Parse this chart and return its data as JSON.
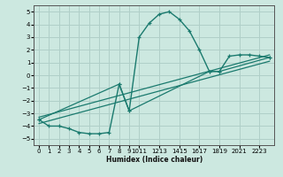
{
  "xlabel": "Humidex (Indice chaleur)",
  "xlim": [
    -0.5,
    23.5
  ],
  "ylim": [
    -5.5,
    5.5
  ],
  "yticks": [
    -5,
    -4,
    -3,
    -2,
    -1,
    0,
    1,
    2,
    3,
    4,
    5
  ],
  "xticks": [
    0,
    1,
    2,
    3,
    4,
    5,
    6,
    7,
    8,
    9,
    10,
    12,
    14,
    16,
    18,
    20,
    22
  ],
  "xtick_labels": [
    "0",
    "1",
    "2",
    "3",
    "4",
    "5",
    "6",
    "7",
    "8",
    "9",
    "1011",
    "1213",
    "1415",
    "1617",
    "1819",
    "2021",
    "2223"
  ],
  "bg_color": "#cce8e0",
  "line_color": "#1a7a6e",
  "grid_color": "#b0cfc8",
  "curve_main_x": [
    0,
    1,
    2,
    3,
    4,
    5,
    6,
    7,
    8,
    9,
    10,
    11,
    12,
    13,
    14,
    15,
    16,
    17,
    18,
    19,
    20,
    21,
    22,
    23
  ],
  "curve_main_y": [
    -3.5,
    -4.0,
    -4.0,
    -4.2,
    -4.5,
    -4.6,
    -4.6,
    -4.5,
    -0.7,
    -2.8,
    3.0,
    4.1,
    4.8,
    5.0,
    4.4,
    3.5,
    2.0,
    0.3,
    0.3,
    1.5,
    1.6,
    1.6,
    1.5,
    1.4
  ],
  "line1_x": [
    0,
    8,
    9,
    17,
    18,
    23
  ],
  "line1_y": [
    -3.5,
    -0.7,
    -2.8,
    0.3,
    0.3,
    1.4
  ],
  "line2_x": [
    0,
    23
  ],
  "line2_y": [
    -3.8,
    1.1
  ],
  "line3_x": [
    0,
    23
  ],
  "line3_y": [
    -3.3,
    1.6
  ]
}
